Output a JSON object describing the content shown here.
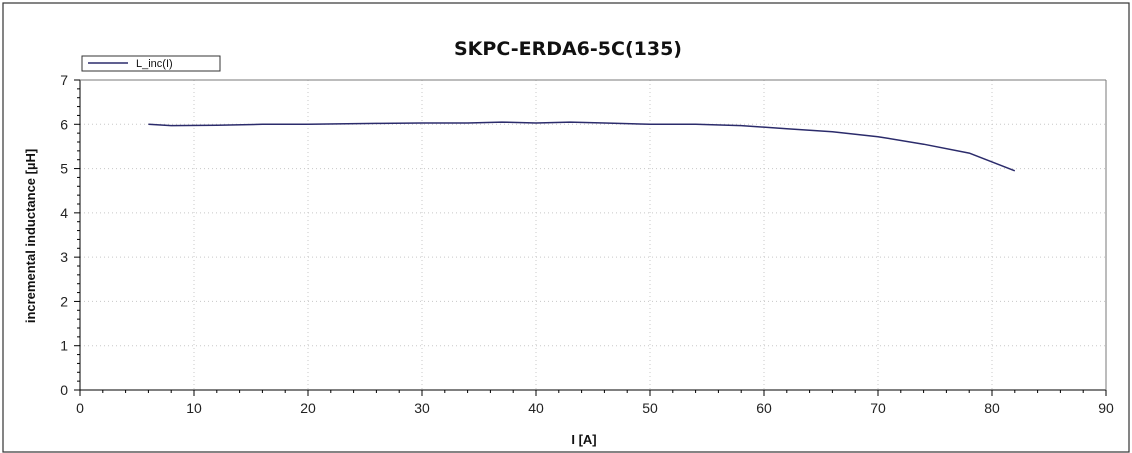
{
  "chart_data": {
    "type": "line",
    "title": "SKPC-ERDA6-5C(135)",
    "xlabel": "I [A]",
    "ylabel": "incremental inductance [µH]",
    "xlim": [
      0,
      90
    ],
    "ylim": [
      0,
      7
    ],
    "xticks": [
      0,
      10,
      20,
      30,
      40,
      50,
      60,
      70,
      80,
      90
    ],
    "yticks": [
      0,
      1,
      2,
      3,
      4,
      5,
      6,
      7
    ],
    "grid": true,
    "legend": {
      "placement": "top-left",
      "entries": [
        "L_inc(I)"
      ]
    },
    "series": [
      {
        "name": "L_inc(I)",
        "color": "#2b2b6b",
        "x": [
          6,
          8,
          12,
          16,
          20,
          26,
          30,
          34,
          37,
          40,
          43,
          46,
          50,
          54,
          58,
          62,
          66,
          70,
          74,
          78,
          82
        ],
        "y": [
          6.0,
          5.97,
          5.98,
          6.0,
          6.0,
          6.02,
          6.03,
          6.03,
          6.05,
          6.03,
          6.05,
          6.03,
          6.0,
          6.0,
          5.97,
          5.9,
          5.83,
          5.72,
          5.55,
          5.35,
          4.95
        ]
      }
    ]
  }
}
